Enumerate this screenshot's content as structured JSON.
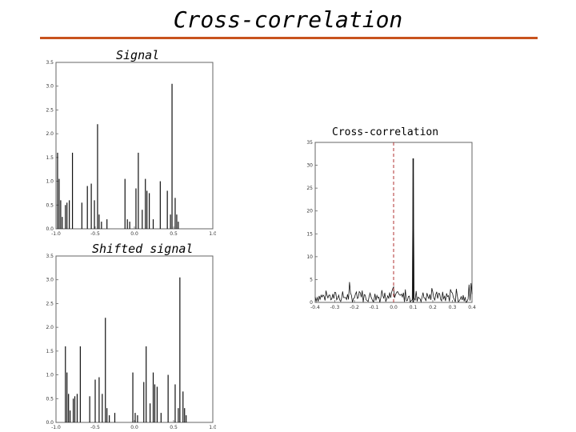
{
  "slide": {
    "title": "Cross-correlation",
    "labels": {
      "signal": "Signal",
      "shifted": "Shifted signal",
      "xcorr": "Cross-correlation"
    }
  },
  "colors": {
    "rule": "#c8531e",
    "line": "#111111",
    "zero_marker": "#b03030",
    "frame": "#666666"
  },
  "chart_data": [
    {
      "id": "signal",
      "type": "line",
      "title": "Signal",
      "xlim": [
        -1.0,
        1.0
      ],
      "ylim": [
        0.0,
        3.5
      ],
      "xticks": [
        "-1.0",
        "-0.5",
        "0.0",
        "0.5",
        "1.0"
      ],
      "yticks": [
        "0.0",
        "0.5",
        "1.0",
        "1.5",
        "2.0",
        "2.5",
        "3.0",
        "3.5"
      ],
      "spikes": [
        [
          -0.98,
          1.6
        ],
        [
          -0.96,
          1.05
        ],
        [
          -0.94,
          0.6
        ],
        [
          -0.92,
          0.25
        ],
        [
          -0.88,
          0.5
        ],
        [
          -0.86,
          0.55
        ],
        [
          -0.83,
          0.6
        ],
        [
          -0.79,
          1.6
        ],
        [
          -0.67,
          0.55
        ],
        [
          -0.6,
          0.9
        ],
        [
          -0.55,
          0.95
        ],
        [
          -0.51,
          0.6
        ],
        [
          -0.47,
          2.2
        ],
        [
          -0.45,
          0.3
        ],
        [
          -0.42,
          0.15
        ],
        [
          -0.35,
          0.2
        ],
        [
          -0.12,
          1.05
        ],
        [
          -0.09,
          0.2
        ],
        [
          -0.06,
          0.15
        ],
        [
          0.02,
          0.85
        ],
        [
          0.05,
          1.6
        ],
        [
          0.1,
          0.4
        ],
        [
          0.14,
          1.05
        ],
        [
          0.16,
          0.8
        ],
        [
          0.19,
          0.75
        ],
        [
          0.24,
          0.2
        ],
        [
          0.33,
          1.0
        ],
        [
          0.42,
          0.8
        ],
        [
          0.46,
          0.3
        ],
        [
          0.48,
          3.05
        ],
        [
          0.52,
          0.65
        ],
        [
          0.54,
          0.3
        ],
        [
          0.56,
          0.15
        ]
      ]
    },
    {
      "id": "shifted",
      "type": "line",
      "title": "Shifted signal",
      "xlim": [
        -1.0,
        1.0
      ],
      "ylim": [
        0.0,
        3.5
      ],
      "xticks": [
        "-1.0",
        "-0.5",
        "0.0",
        "0.5",
        "1.0"
      ],
      "yticks": [
        "0.0",
        "0.5",
        "1.0",
        "1.5",
        "2.0",
        "2.5",
        "3.0",
        "3.5"
      ],
      "spikes": [
        [
          -0.88,
          1.6
        ],
        [
          -0.86,
          1.05
        ],
        [
          -0.84,
          0.6
        ],
        [
          -0.82,
          0.25
        ],
        [
          -0.78,
          0.5
        ],
        [
          -0.76,
          0.55
        ],
        [
          -0.73,
          0.6
        ],
        [
          -0.69,
          1.6
        ],
        [
          -0.57,
          0.55
        ],
        [
          -0.5,
          0.9
        ],
        [
          -0.45,
          0.95
        ],
        [
          -0.41,
          0.6
        ],
        [
          -0.37,
          2.2
        ],
        [
          -0.35,
          0.3
        ],
        [
          -0.32,
          0.15
        ],
        [
          -0.25,
          0.2
        ],
        [
          -0.02,
          1.05
        ],
        [
          0.01,
          0.2
        ],
        [
          0.04,
          0.15
        ],
        [
          0.12,
          0.85
        ],
        [
          0.15,
          1.6
        ],
        [
          0.2,
          0.4
        ],
        [
          0.24,
          1.05
        ],
        [
          0.26,
          0.8
        ],
        [
          0.29,
          0.75
        ],
        [
          0.34,
          0.2
        ],
        [
          0.43,
          1.0
        ],
        [
          0.52,
          0.8
        ],
        [
          0.56,
          0.3
        ],
        [
          0.58,
          3.05
        ],
        [
          0.62,
          0.65
        ],
        [
          0.64,
          0.3
        ],
        [
          0.66,
          0.15
        ]
      ]
    },
    {
      "id": "xcorr",
      "type": "line",
      "title": "Cross-correlation",
      "xlim": [
        -0.4,
        0.4
      ],
      "ylim": [
        0,
        35
      ],
      "xticks": [
        "-0.4",
        "-0.3",
        "-0.2",
        "-0.1",
        "0.0",
        "0.1",
        "0.2",
        "0.3",
        "0.4"
      ],
      "yticks": [
        "0",
        "5",
        "10",
        "15",
        "20",
        "25",
        "30",
        "35"
      ],
      "zero_line_x": 0.0,
      "peak": {
        "x": 0.1,
        "y": 31.5
      }
    }
  ]
}
